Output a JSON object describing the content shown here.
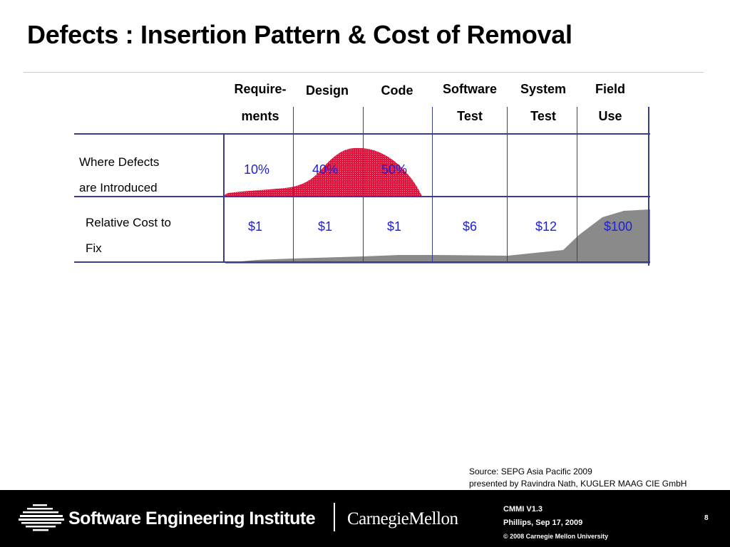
{
  "slide": {
    "title": "Defects : Insertion Pattern & Cost of Removal",
    "page_number": "8"
  },
  "columns": [
    {
      "line1": "Require-",
      "line2": "ments"
    },
    {
      "line1": "Design",
      "line2": ""
    },
    {
      "line1": "Code",
      "line2": ""
    },
    {
      "line1": "Software",
      "line2": "Test"
    },
    {
      "line1": "System",
      "line2": "Test"
    },
    {
      "line1": "Field",
      "line2": "Use"
    }
  ],
  "rows": {
    "introduced": {
      "label_line1": "Where Defects",
      "label_line2": "are Introduced",
      "values": [
        "10%",
        "40%",
        "50%",
        "",
        "",
        ""
      ]
    },
    "cost": {
      "label_line1": "Relative Cost to",
      "label_line2": "Fix",
      "values": [
        "$1",
        "$1",
        "$1",
        "$6",
        "$12",
        "$100"
      ]
    }
  },
  "source": {
    "line1": "Source: SEPG Asia Pacific 2009",
    "line2": "presented by Ravindra Nath, KUGLER MAAG CIE GmbH"
  },
  "footer": {
    "institute": "Software Engineering Institute",
    "university": "CarnegieMellon",
    "course": "CMMI   V1.3",
    "presenter": "Phillips, Sep 17, 2009",
    "copyright": "© 2008 Carnegie Mellon University"
  },
  "colors": {
    "accent_blue": "#1f1fd4",
    "grid_line": "#3c3c8c",
    "defect_curve": "#e0143c",
    "cost_curve": "#8a8a8a",
    "footer_bg": "#000000"
  }
}
